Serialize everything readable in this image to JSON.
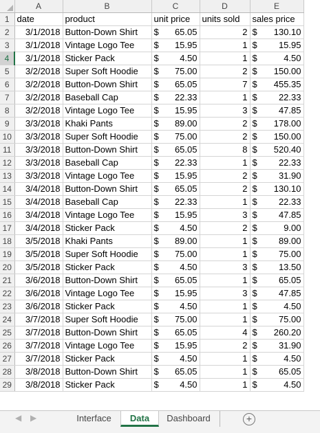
{
  "columns": [
    "A",
    "B",
    "C",
    "D",
    "E"
  ],
  "headers": [
    "date",
    "product",
    "unit price",
    "units sold",
    "sales price"
  ],
  "currency_symbol": "$",
  "rows": [
    {
      "date": "3/1/2018",
      "product": "Button-Down Shirt",
      "unit_price": "65.05",
      "units": "2",
      "sales": "130.10"
    },
    {
      "date": "3/1/2018",
      "product": "Vintage Logo Tee",
      "unit_price": "15.95",
      "units": "1",
      "sales": "15.95"
    },
    {
      "date": "3/1/2018",
      "product": "Sticker Pack",
      "unit_price": "4.50",
      "units": "1",
      "sales": "4.50"
    },
    {
      "date": "3/2/2018",
      "product": "Super Soft Hoodie",
      "unit_price": "75.00",
      "units": "2",
      "sales": "150.00"
    },
    {
      "date": "3/2/2018",
      "product": "Button-Down Shirt",
      "unit_price": "65.05",
      "units": "7",
      "sales": "455.35"
    },
    {
      "date": "3/2/2018",
      "product": "Baseball Cap",
      "unit_price": "22.33",
      "units": "1",
      "sales": "22.33"
    },
    {
      "date": "3/2/2018",
      "product": "Vintage Logo Tee",
      "unit_price": "15.95",
      "units": "3",
      "sales": "47.85"
    },
    {
      "date": "3/3/2018",
      "product": "Khaki Pants",
      "unit_price": "89.00",
      "units": "2",
      "sales": "178.00"
    },
    {
      "date": "3/3/2018",
      "product": "Super Soft Hoodie",
      "unit_price": "75.00",
      "units": "2",
      "sales": "150.00"
    },
    {
      "date": "3/3/2018",
      "product": "Button-Down Shirt",
      "unit_price": "65.05",
      "units": "8",
      "sales": "520.40"
    },
    {
      "date": "3/3/2018",
      "product": "Baseball Cap",
      "unit_price": "22.33",
      "units": "1",
      "sales": "22.33"
    },
    {
      "date": "3/3/2018",
      "product": "Vintage Logo Tee",
      "unit_price": "15.95",
      "units": "2",
      "sales": "31.90"
    },
    {
      "date": "3/4/2018",
      "product": "Button-Down Shirt",
      "unit_price": "65.05",
      "units": "2",
      "sales": "130.10"
    },
    {
      "date": "3/4/2018",
      "product": "Baseball Cap",
      "unit_price": "22.33",
      "units": "1",
      "sales": "22.33"
    },
    {
      "date": "3/4/2018",
      "product": "Vintage Logo Tee",
      "unit_price": "15.95",
      "units": "3",
      "sales": "47.85"
    },
    {
      "date": "3/4/2018",
      "product": "Sticker Pack",
      "unit_price": "4.50",
      "units": "2",
      "sales": "9.00"
    },
    {
      "date": "3/5/2018",
      "product": "Khaki Pants",
      "unit_price": "89.00",
      "units": "1",
      "sales": "89.00"
    },
    {
      "date": "3/5/2018",
      "product": "Super Soft Hoodie",
      "unit_price": "75.00",
      "units": "1",
      "sales": "75.00"
    },
    {
      "date": "3/5/2018",
      "product": "Sticker Pack",
      "unit_price": "4.50",
      "units": "3",
      "sales": "13.50"
    },
    {
      "date": "3/6/2018",
      "product": "Button-Down Shirt",
      "unit_price": "65.05",
      "units": "1",
      "sales": "65.05"
    },
    {
      "date": "3/6/2018",
      "product": "Vintage Logo Tee",
      "unit_price": "15.95",
      "units": "3",
      "sales": "47.85"
    },
    {
      "date": "3/6/2018",
      "product": "Sticker Pack",
      "unit_price": "4.50",
      "units": "1",
      "sales": "4.50"
    },
    {
      "date": "3/7/2018",
      "product": "Super Soft Hoodie",
      "unit_price": "75.00",
      "units": "1",
      "sales": "75.00"
    },
    {
      "date": "3/7/2018",
      "product": "Button-Down Shirt",
      "unit_price": "65.05",
      "units": "4",
      "sales": "260.20"
    },
    {
      "date": "3/7/2018",
      "product": "Vintage Logo Tee",
      "unit_price": "15.95",
      "units": "2",
      "sales": "31.90"
    },
    {
      "date": "3/7/2018",
      "product": "Sticker Pack",
      "unit_price": "4.50",
      "units": "1",
      "sales": "4.50"
    },
    {
      "date": "3/8/2018",
      "product": "Button-Down Shirt",
      "unit_price": "65.05",
      "units": "1",
      "sales": "65.05"
    },
    {
      "date": "3/8/2018",
      "product": "Sticker Pack",
      "unit_price": "4.50",
      "units": "1",
      "sales": "4.50"
    }
  ],
  "selected_row": 4,
  "sheet_tabs": [
    {
      "label": "Interface",
      "active": false
    },
    {
      "label": "Data",
      "active": true
    },
    {
      "label": "Dashboard",
      "active": false
    }
  ],
  "icons": {
    "prev": "triangle-left-icon",
    "next": "triangle-right-icon",
    "add": "plus-circle-icon"
  },
  "colors": {
    "accent": "#217346",
    "grid": "#d4d4d4",
    "header_bg": "#f0f0f0"
  }
}
